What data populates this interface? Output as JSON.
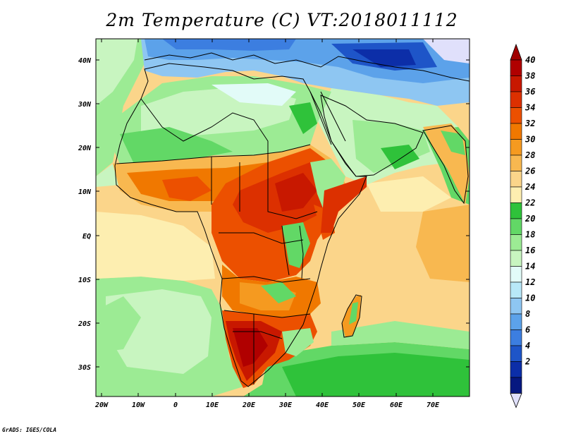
{
  "title": "2m Temperature (C) VT:2018011112",
  "credit": "GrADS: IGES/COLA",
  "map": {
    "lat_labels": [
      "40N",
      "30N",
      "20N",
      "10N",
      "EQ",
      "10S",
      "20S",
      "30S"
    ],
    "lon_labels": [
      "20W",
      "10W",
      "0",
      "10E",
      "20E",
      "30E",
      "40E",
      "50E",
      "60E",
      "70E"
    ]
  },
  "colorbar": {
    "labels": [
      "40",
      "38",
      "36",
      "34",
      "32",
      "30",
      "28",
      "26",
      "24",
      "22",
      "20",
      "18",
      "16",
      "14",
      "12",
      "10",
      "8",
      "6",
      "4",
      "2"
    ],
    "colors": [
      "#b00000",
      "#c81800",
      "#dc3000",
      "#ec5000",
      "#f07800",
      "#f59a20",
      "#f8b850",
      "#fbd58a",
      "#fdeeb0",
      "#2fc23a",
      "#62d866",
      "#9ceb94",
      "#c8f5c0",
      "#e2fbf8",
      "#b8e8f8",
      "#8ec6f2",
      "#5ca2ea",
      "#3c7ee0",
      "#1e55c8",
      "#0c2ea8",
      "#061880"
    ],
    "under_color": "#e0e0fb",
    "over_color": "#a00000"
  }
}
